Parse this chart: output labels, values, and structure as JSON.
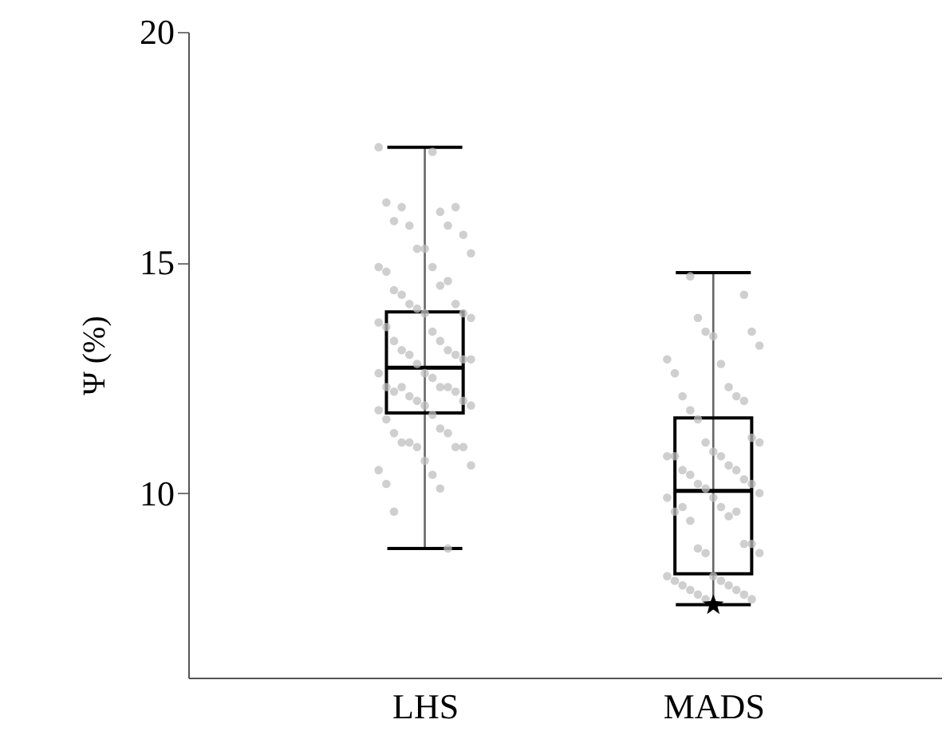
{
  "chart_data": {
    "type": "box",
    "ylabel": "Ψ (%)",
    "categories": [
      "LHS",
      "MADS"
    ],
    "boxes": [
      {
        "low": 8.8,
        "q1": 11.74,
        "median": 12.72,
        "q3": 13.93,
        "high": 17.5
      },
      {
        "low": 7.58,
        "q1": 8.25,
        "median": 10.05,
        "q3": 11.63,
        "high": 14.78
      }
    ],
    "series": [
      {
        "type": "scatter",
        "color": "#bfbfbf",
        "marker": "circle",
        "x": [
          "LHS",
          "LHS",
          "LHS",
          "LHS",
          "LHS",
          "LHS",
          "LHS",
          "LHS",
          "LHS",
          "LHS",
          "LHS",
          "LHS",
          "LHS",
          "LHS",
          "LHS",
          "LHS",
          "LHS",
          "LHS",
          "LHS",
          "LHS",
          "LHS",
          "LHS",
          "LHS",
          "LHS",
          "LHS",
          "LHS",
          "LHS",
          "LHS",
          "LHS",
          "LHS",
          "LHS",
          "LHS",
          "LHS",
          "LHS",
          "LHS",
          "LHS",
          "LHS",
          "LHS",
          "LHS",
          "LHS",
          "LHS",
          "LHS",
          "LHS",
          "LHS",
          "LHS",
          "LHS",
          "LHS",
          "LHS",
          "LHS",
          "LHS",
          "LHS",
          "LHS",
          "LHS",
          "LHS",
          "LHS",
          "LHS",
          "LHS",
          "LHS",
          "LHS",
          "LHS",
          "LHS",
          "LHS",
          "LHS",
          "LHS",
          "LHS",
          "LHS",
          "LHS",
          "LHS",
          "LHS",
          "LHS",
          "LHS",
          "MADS",
          "MADS",
          "MADS",
          "MADS",
          "MADS",
          "MADS",
          "MADS",
          "MADS",
          "MADS",
          "MADS",
          "MADS",
          "MADS",
          "MADS",
          "MADS",
          "MADS",
          "MADS",
          "MADS",
          "MADS",
          "MADS",
          "MADS",
          "MADS",
          "MADS",
          "MADS",
          "MADS",
          "MADS",
          "MADS",
          "MADS",
          "MADS",
          "MADS",
          "MADS",
          "MADS",
          "MADS",
          "MADS",
          "MADS",
          "MADS",
          "MADS",
          "MADS",
          "MADS",
          "MADS",
          "MADS",
          "MADS",
          "MADS",
          "MADS",
          "MADS",
          "MADS",
          "MADS",
          "MADS",
          "MADS",
          "MADS",
          "MADS",
          "MADS",
          "MADS",
          "MADS",
          "MADS",
          "MADS",
          "MADS",
          "MADS"
        ],
        "values": [
          17.5,
          17.4,
          16.3,
          16.1,
          15.9,
          15.8,
          16.2,
          16.2,
          15.8,
          15.6,
          15.3,
          15.2,
          15.3,
          14.9,
          14.9,
          14.8,
          14.5,
          14.4,
          14.6,
          14.3,
          14.1,
          14.1,
          13.9,
          14.0,
          13.8,
          13.9,
          13.7,
          13.5,
          13.6,
          13.3,
          13.3,
          13.1,
          13.1,
          13.0,
          13.0,
          12.9,
          12.8,
          12.9,
          12.6,
          12.6,
          12.5,
          12.3,
          12.3,
          12.2,
          12.3,
          12.3,
          12.2,
          12.1,
          12.0,
          12.0,
          11.9,
          11.9,
          11.8,
          11.7,
          11.6,
          11.4,
          11.3,
          11.3,
          11.1,
          11.0,
          11.1,
          11.0,
          11.0,
          10.6,
          10.7,
          10.5,
          10.4,
          10.2,
          10.1,
          9.6,
          8.8,
          14.7,
          14.3,
          13.8,
          13.5,
          13.5,
          13.2,
          13.4,
          12.9,
          12.8,
          12.6,
          12.3,
          12.1,
          12.1,
          11.8,
          12.0,
          11.6,
          11.2,
          11.1,
          11.1,
          10.9,
          10.8,
          10.8,
          10.8,
          10.6,
          10.5,
          10.5,
          10.4,
          10.3,
          10.2,
          10.2,
          10.1,
          10.0,
          9.9,
          9.9,
          9.7,
          9.6,
          9.5,
          9.7,
          9.6,
          9.4,
          8.9,
          8.8,
          8.9,
          8.7,
          8.7,
          8.2,
          8.2,
          8.1,
          8.1,
          8.0,
          8.0,
          7.9,
          7.9,
          7.8,
          7.8,
          7.7,
          7.7
        ]
      },
      {
        "type": "scatter",
        "color": "#000000",
        "marker": "star",
        "x": [
          "MADS"
        ],
        "values": [
          7.58
        ]
      }
    ],
    "ylim": [
      6,
      20
    ],
    "yticks": [
      10,
      15,
      20
    ],
    "grid": false
  }
}
